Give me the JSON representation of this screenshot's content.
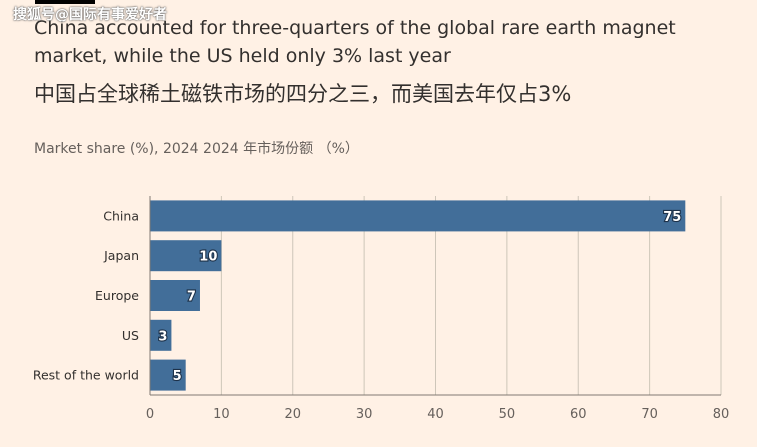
{
  "watermark": "搜狐号@国际有事爱好者",
  "title": "China accounted for three-quarters of the global rare earth magnet market, while the US held only 3% last year",
  "title_cn": "中国占全球稀土磁铁市场的四分之三，而美国去年仅占3%",
  "subtitle": "Market share (%), 2024  2024 年市场份额 （%）",
  "colors": {
    "bar": "#426E99",
    "background": "#FFF1E5",
    "grid": "#CEC6B9",
    "text": "#33302E"
  },
  "chart_data": {
    "type": "bar",
    "orientation": "horizontal",
    "categories": [
      "China",
      "Japan",
      "Europe",
      "US",
      "Rest of the world"
    ],
    "values": [
      75,
      10,
      7,
      3,
      5
    ],
    "data_labels": [
      "75",
      "10",
      "7",
      "3",
      "5"
    ],
    "xlim": [
      0,
      80
    ],
    "x_ticks": [
      "0",
      "10",
      "20",
      "30",
      "40",
      "50",
      "60",
      "70",
      "80"
    ],
    "grid": true,
    "legend": "none"
  }
}
